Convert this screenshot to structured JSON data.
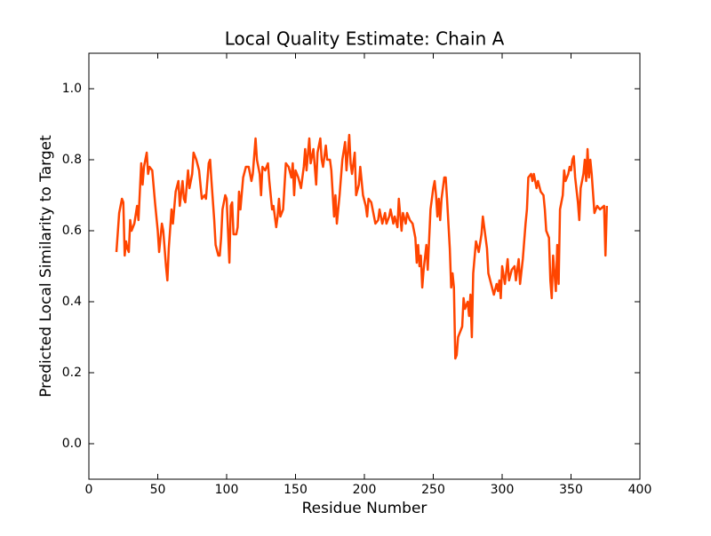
{
  "chart_data": {
    "type": "line",
    "title": "Local Quality Estimate: Chain A",
    "x_label": "Residue Number",
    "y_label": "Predicted Local Similarity to Target",
    "xlim": [
      0,
      400
    ],
    "xticks": [
      0,
      50,
      100,
      150,
      200,
      250,
      300,
      350,
      400
    ],
    "ylim": [
      -0.1,
      1.1
    ],
    "yticks": [
      {
        "value": 0,
        "label": "0.0"
      },
      0.2,
      0.4,
      0.6,
      0.8,
      {
        "value": 1,
        "label": "1.0"
      }
    ],
    "grid": false,
    "series": [
      {
        "color": "#ff4500",
        "x": [
          20,
          22,
          24,
          25,
          26,
          27,
          28,
          29,
          30,
          31,
          33,
          35,
          36,
          38,
          39,
          40,
          42,
          43,
          44,
          46,
          48,
          50,
          51,
          53,
          54,
          56,
          57,
          58,
          60,
          61,
          63,
          65,
          66,
          68,
          69,
          70,
          72,
          73,
          75,
          76,
          78,
          80,
          82,
          84,
          85,
          87,
          88,
          89,
          91,
          92,
          94,
          95,
          96,
          97,
          99,
          100,
          101,
          102,
          103,
          104,
          105,
          107,
          108,
          109,
          110,
          112,
          114,
          116,
          118,
          119,
          121,
          122,
          124,
          125,
          126,
          128,
          130,
          131,
          133,
          134,
          136,
          137,
          138,
          139,
          141,
          143,
          145,
          147,
          148,
          149,
          150,
          152,
          154,
          156,
          157,
          158,
          160,
          161,
          163,
          165,
          166,
          168,
          169,
          170,
          172,
          173,
          175,
          176,
          178,
          179,
          180,
          182,
          184,
          186,
          187,
          189,
          190,
          191,
          193,
          194,
          196,
          197,
          199,
          201,
          202,
          203,
          205,
          207,
          208,
          210,
          211,
          213,
          215,
          216,
          218,
          219,
          221,
          222,
          224,
          225,
          227,
          228,
          230,
          231,
          233,
          235,
          237,
          238,
          239,
          240,
          241,
          242,
          243,
          245,
          246,
          248,
          250,
          251,
          252,
          253,
          254,
          255,
          256,
          258,
          259,
          260,
          262,
          263,
          264,
          265,
          266,
          267,
          268,
          270,
          271,
          272,
          273,
          275,
          276,
          277,
          278,
          279,
          281,
          283,
          285,
          286,
          288,
          289,
          290,
          292,
          294,
          296,
          297,
          298,
          299,
          300,
          302,
          304,
          305,
          307,
          309,
          310,
          312,
          313,
          315,
          317,
          318,
          319,
          321,
          322,
          323,
          325,
          326,
          328,
          330,
          331,
          332,
          334,
          335,
          336,
          337,
          338,
          339,
          340,
          341,
          342,
          344,
          345,
          346,
          348,
          349,
          350,
          351,
          352,
          353,
          355,
          356,
          357,
          359,
          360,
          361,
          362,
          363,
          364,
          365,
          367,
          368,
          369,
          371,
          374,
          375,
          376
        ],
        "values": [
          0.54,
          0.65,
          0.69,
          0.68,
          0.53,
          0.57,
          0.55,
          0.54,
          0.63,
          0.6,
          0.62,
          0.67,
          0.63,
          0.79,
          0.73,
          0.78,
          0.82,
          0.76,
          0.78,
          0.77,
          0.68,
          0.6,
          0.54,
          0.62,
          0.6,
          0.5,
          0.46,
          0.55,
          0.66,
          0.62,
          0.71,
          0.74,
          0.67,
          0.74,
          0.69,
          0.68,
          0.77,
          0.72,
          0.76,
          0.82,
          0.8,
          0.77,
          0.69,
          0.7,
          0.69,
          0.79,
          0.8,
          0.74,
          0.63,
          0.56,
          0.53,
          0.53,
          0.58,
          0.66,
          0.7,
          0.69,
          0.6,
          0.51,
          0.67,
          0.68,
          0.59,
          0.59,
          0.61,
          0.71,
          0.66,
          0.75,
          0.78,
          0.78,
          0.74,
          0.76,
          0.86,
          0.8,
          0.76,
          0.7,
          0.78,
          0.77,
          0.79,
          0.74,
          0.66,
          0.67,
          0.61,
          0.64,
          0.69,
          0.64,
          0.66,
          0.79,
          0.78,
          0.75,
          0.79,
          0.7,
          0.77,
          0.75,
          0.72,
          0.78,
          0.83,
          0.77,
          0.86,
          0.79,
          0.83,
          0.73,
          0.82,
          0.86,
          0.8,
          0.78,
          0.84,
          0.8,
          0.8,
          0.77,
          0.64,
          0.7,
          0.62,
          0.7,
          0.8,
          0.85,
          0.77,
          0.87,
          0.79,
          0.76,
          0.82,
          0.7,
          0.73,
          0.78,
          0.7,
          0.67,
          0.64,
          0.69,
          0.68,
          0.64,
          0.62,
          0.63,
          0.66,
          0.62,
          0.65,
          0.62,
          0.64,
          0.66,
          0.62,
          0.64,
          0.61,
          0.69,
          0.6,
          0.65,
          0.62,
          0.65,
          0.63,
          0.62,
          0.58,
          0.51,
          0.56,
          0.5,
          0.53,
          0.44,
          0.49,
          0.56,
          0.49,
          0.66,
          0.72,
          0.74,
          0.7,
          0.64,
          0.69,
          0.63,
          0.69,
          0.75,
          0.75,
          0.69,
          0.55,
          0.44,
          0.48,
          0.44,
          0.24,
          0.25,
          0.3,
          0.32,
          0.33,
          0.41,
          0.38,
          0.4,
          0.36,
          0.42,
          0.3,
          0.48,
          0.57,
          0.54,
          0.59,
          0.64,
          0.58,
          0.55,
          0.48,
          0.45,
          0.42,
          0.45,
          0.43,
          0.46,
          0.41,
          0.5,
          0.45,
          0.52,
          0.46,
          0.49,
          0.5,
          0.46,
          0.52,
          0.45,
          0.52,
          0.62,
          0.66,
          0.75,
          0.76,
          0.74,
          0.76,
          0.72,
          0.74,
          0.71,
          0.7,
          0.66,
          0.6,
          0.58,
          0.46,
          0.41,
          0.53,
          0.48,
          0.43,
          0.56,
          0.45,
          0.66,
          0.7,
          0.77,
          0.74,
          0.76,
          0.78,
          0.77,
          0.8,
          0.81,
          0.75,
          0.68,
          0.63,
          0.72,
          0.76,
          0.8,
          0.74,
          0.83,
          0.75,
          0.8,
          0.76,
          0.65,
          0.66,
          0.67,
          0.66,
          0.67,
          0.53,
          0.67
        ]
      }
    ]
  }
}
